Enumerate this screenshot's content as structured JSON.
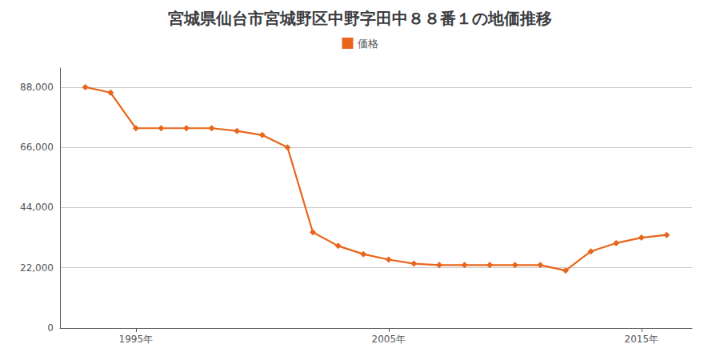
{
  "chart_data": {
    "type": "line",
    "title": "宮城県仙台市宮城野区中野字田中８８番１の地価推移",
    "x": [
      1993,
      1994,
      1995,
      1996,
      1997,
      1998,
      1999,
      2000,
      2001,
      2002,
      2003,
      2004,
      2005,
      2006,
      2007,
      2008,
      2009,
      2010,
      2011,
      2012,
      2013,
      2014,
      2015,
      2016
    ],
    "series": [
      {
        "name": "価格",
        "color": "#e8651a",
        "marker": "diamond",
        "values": [
          88000,
          86000,
          73000,
          73000,
          73000,
          73000,
          72000,
          70500,
          66000,
          35000,
          30000,
          27000,
          25000,
          23500,
          23000,
          23000,
          23000,
          23000,
          23000,
          21000,
          28000,
          31000,
          33000,
          34000
        ]
      }
    ],
    "xlim": [
      1992,
      2017
    ],
    "xticks": [
      {
        "value": 1995,
        "label": "1995年"
      },
      {
        "value": 2005,
        "label": "2005年"
      },
      {
        "value": 2015,
        "label": "2015年"
      }
    ],
    "ylim": [
      0,
      95000
    ],
    "yticks": [
      0,
      {
        "value": 22000,
        "label": "22,000"
      },
      {
        "value": 44000,
        "label": "44,000"
      },
      {
        "value": 66000,
        "label": "66,000"
      },
      {
        "value": 88000,
        "label": "88,000"
      }
    ],
    "grid": true,
    "legend": "upper center"
  }
}
